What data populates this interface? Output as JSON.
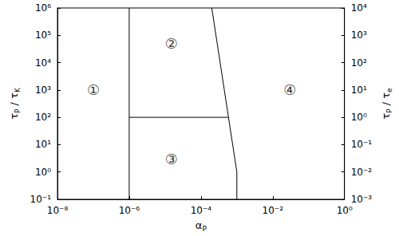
{
  "chart_data": {
    "type": "line",
    "log": true,
    "grid": false,
    "x_label": "αP",
    "y_label": "τP / τK",
    "y2_label": "τP / τe",
    "xlim": [
      1e-08,
      1
    ],
    "xticks": [
      {
        "value": 1e-08,
        "label": "10⁻⁸"
      },
      {
        "value": 1e-06,
        "label": "10⁻⁶"
      },
      {
        "value": 0.0001,
        "label": "10⁻⁴"
      },
      {
        "value": 0.01,
        "label": "10⁻²"
      },
      {
        "value": 1,
        "label": "10⁰"
      }
    ],
    "ylim": [
      0.1,
      1000000
    ],
    "yticks": [
      {
        "value": 0.1,
        "label": "10⁻¹"
      },
      {
        "value": 1,
        "label": "10⁰"
      },
      {
        "value": 10,
        "label": "10¹"
      },
      {
        "value": 100,
        "label": "10²"
      },
      {
        "value": 1000,
        "label": "10³"
      },
      {
        "value": 10000,
        "label": "10⁴"
      },
      {
        "value": 100000,
        "label": "10⁵"
      },
      {
        "value": 1000000,
        "label": "10⁶"
      }
    ],
    "y2lim": [
      0.001,
      10000
    ],
    "y2ticks": [
      {
        "value": 0.001,
        "label": "10⁻³"
      },
      {
        "value": 0.01,
        "label": "10⁻²"
      },
      {
        "value": 0.1,
        "label": "10⁻¹"
      },
      {
        "value": 1,
        "label": "10⁰"
      },
      {
        "value": 10,
        "label": "10¹"
      },
      {
        "value": 100,
        "label": "10²"
      },
      {
        "value": 1000,
        "label": "10³"
      },
      {
        "value": 10000,
        "label": "10⁴"
      }
    ],
    "series": [
      {
        "color": "#000000",
        "x": [
          1e-06,
          1e-06
        ],
        "values": [
          0.1,
          1000000
        ]
      },
      {
        "color": "#000000",
        "x": [
          1e-06,
          0.00059
        ],
        "values": [
          100,
          100
        ]
      },
      {
        "color": "#000000",
        "x": [
          0.0002,
          0.001,
          0.001
        ],
        "values": [
          1000000,
          1,
          0.1
        ]
      }
    ],
    "annotations": [
      {
        "text": "①",
        "x": 1e-07,
        "y": 1000
      },
      {
        "text": "②",
        "x": 1.5e-05,
        "y": 50000
      },
      {
        "text": "③",
        "x": 1.5e-05,
        "y": 3
      },
      {
        "text": "④",
        "x": 0.03,
        "y": 1000
      }
    ]
  }
}
